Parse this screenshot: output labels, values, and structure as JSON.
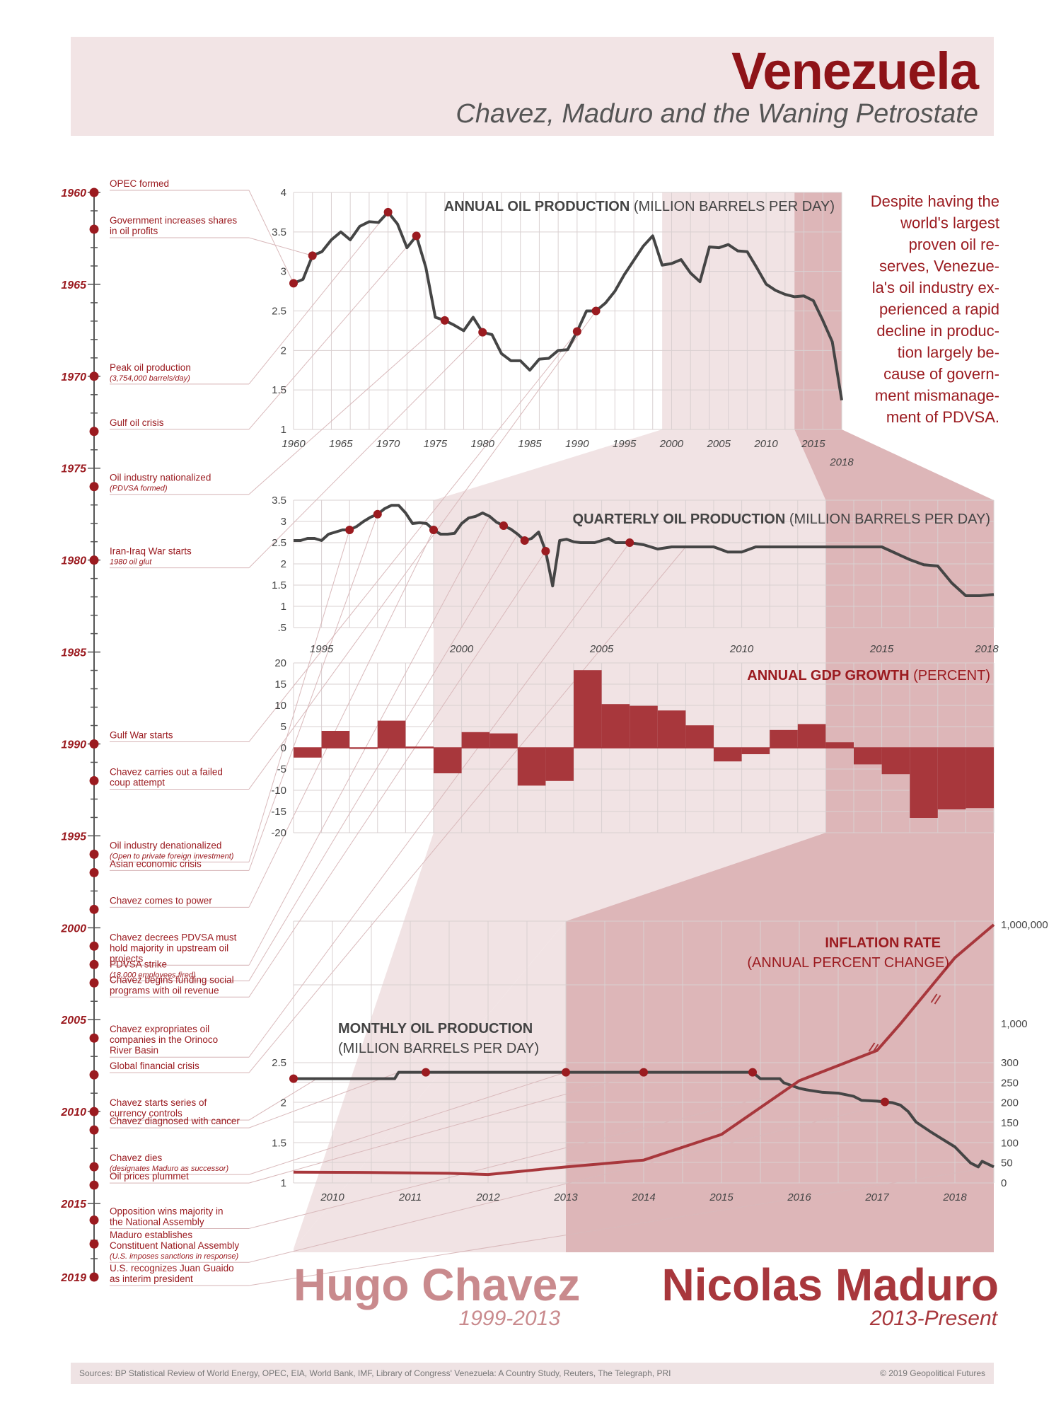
{
  "header": {
    "title": "Venezuela",
    "subtitle": "Chavez, Maduro and the Waning Petrostate"
  },
  "intro_text": "Despite having the world's largest proven oil reserves, Venezuela's oil industry experienced a rapid decline in production largely because of government mismanagement of PDVSA.",
  "intro_lines": [
    "Despite having the",
    "world's largest",
    "proven oil re-",
    "serves, Venezue-",
    "la's oil industry ex-",
    "perienced a rapid",
    "decline in produc-",
    "tion largely be-",
    "cause of govern-",
    "ment mismanage-",
    "ment of PDVSA."
  ],
  "colors": {
    "accent": "#9b1b20",
    "dark_line": "#454545",
    "chavez": "#c98a8d",
    "maduro": "#a8373c",
    "band_light": "#f1e3e4",
    "band_dark": "#ddb6b8",
    "header_bg": "#f2e4e5"
  },
  "timeline": {
    "year_labels": [
      "1960",
      "1965",
      "1970",
      "1975",
      "1980",
      "1985",
      "1990",
      "1995",
      "2000",
      "2005",
      "2010",
      "2015",
      "2019"
    ],
    "events": [
      {
        "year": 1960,
        "label": "OPEC formed",
        "note": ""
      },
      {
        "year": 1962,
        "label": "Government increases shares in oil profits",
        "note": ""
      },
      {
        "year": 1970,
        "label": "Peak oil production",
        "note": "(3,754,000 barrels/day)"
      },
      {
        "year": 1973,
        "label": "Gulf oil crisis",
        "note": ""
      },
      {
        "year": 1976,
        "label": "Oil industry nationalized",
        "note": "(PDVSA formed)"
      },
      {
        "year": 1980,
        "label": "Iran-Iraq War starts",
        "note": "1980 oil glut"
      },
      {
        "year": 1990,
        "label": "Gulf War starts",
        "note": ""
      },
      {
        "year": 1992,
        "label": "Chavez carries out a failed coup attempt",
        "note": ""
      },
      {
        "year": 1996,
        "label": "Oil industry denationalized",
        "note": "(Open to private foreign investment)"
      },
      {
        "year": 1997,
        "label": "Asian economic crisis",
        "note": ""
      },
      {
        "year": 1999,
        "label": "Chavez comes to power",
        "note": ""
      },
      {
        "year": 2001,
        "label": "Chavez decrees PDVSA must hold majority in upstream oil projects",
        "note": ""
      },
      {
        "year": 2002,
        "label": "PDVSA strike",
        "note": "(18,000 employees fired)"
      },
      {
        "year": 2003,
        "label": "Chavez begins funding social programs with oil revenue",
        "note": ""
      },
      {
        "year": 2006,
        "label": "Chavez expropriates oil companies in the Orinoco River Basin",
        "note": ""
      },
      {
        "year": 2008,
        "label": "Global financial crisis",
        "note": ""
      },
      {
        "year": 2010,
        "label": "Chavez starts series of currency controls",
        "note": ""
      },
      {
        "year": 2011,
        "label": "Chavez diagnosed with cancer",
        "note": ""
      },
      {
        "year": 2013,
        "label": "Chavez dies",
        "note": "(designates Maduro as successor)"
      },
      {
        "year": 2014,
        "label": "Oil prices plummet",
        "note": ""
      },
      {
        "year": 2015.9,
        "label": "Opposition wins majority in the National Assembly",
        "note": ""
      },
      {
        "year": 2017.2,
        "label": "Maduro establishes Constituent National Assembly",
        "note": "(U.S. imposes sanctions in response)"
      },
      {
        "year": 2019,
        "label": "U.S. recognizes Juan Guaido as interim president",
        "note": ""
      }
    ]
  },
  "chart_data": [
    {
      "type": "line",
      "title": "ANNUAL OIL PRODUCTION",
      "unit_label": "(MILLION BARRELS PER DAY)",
      "x_ticks": [
        "1960",
        "1965",
        "1970",
        "1975",
        "1980",
        "1985",
        "1990",
        "1995",
        "2000",
        "2005",
        "2010",
        "2015"
      ],
      "x_extra_tick": "2018",
      "y_ticks": [
        "1",
        "1.5",
        "2",
        "2.5",
        "3",
        "3.5",
        "4"
      ],
      "xlim": [
        1960,
        2018
      ],
      "ylim": [
        1,
        4
      ],
      "x": [
        1960,
        1961,
        1962,
        1963,
        1964,
        1965,
        1966,
        1967,
        1968,
        1969,
        1970,
        1971,
        1972,
        1973,
        1974,
        1975,
        1976,
        1977,
        1978,
        1979,
        1980,
        1981,
        1982,
        1983,
        1984,
        1985,
        1986,
        1987,
        1988,
        1989,
        1990,
        1991,
        1992,
        1993,
        1994,
        1995,
        1996,
        1997,
        1998,
        1999,
        2000,
        2001,
        2002,
        2003,
        2004,
        2005,
        2006,
        2007,
        2008,
        2009,
        2010,
        2011,
        2012,
        2013,
        2014,
        2015,
        2016,
        2017,
        2018
      ],
      "y": [
        2.85,
        2.9,
        3.2,
        3.25,
        3.4,
        3.5,
        3.4,
        3.57,
        3.63,
        3.62,
        3.75,
        3.6,
        3.3,
        3.45,
        3.05,
        2.42,
        2.38,
        2.32,
        2.25,
        2.42,
        2.23,
        2.2,
        1.96,
        1.87,
        1.87,
        1.75,
        1.89,
        1.9,
        2.0,
        2.01,
        2.24,
        2.5,
        2.5,
        2.6,
        2.75,
        2.96,
        3.14,
        3.32,
        3.45,
        3.08,
        3.1,
        3.15,
        2.98,
        2.87,
        3.31,
        3.3,
        3.34,
        3.26,
        3.25,
        3.05,
        2.84,
        2.76,
        2.71,
        2.68,
        2.69,
        2.63,
        2.38,
        2.11,
        1.37
      ],
      "highlight_years": [
        1960,
        1962,
        1970,
        1973,
        1976,
        1980,
        1990,
        1992
      ]
    },
    {
      "type": "line",
      "title": "QUARTERLY OIL PRODUCTION",
      "unit_label": "(MILLION BARRELS PER DAY)",
      "x_ticks": [
        "1995",
        "2000",
        "2005",
        "2010",
        "2015",
        "2018"
      ],
      "y_ticks": [
        ".5",
        "1",
        "1.5",
        "2",
        "2.5",
        "3",
        "3.5"
      ],
      "xlim": [
        1994,
        2019
      ],
      "ylim": [
        0.5,
        3.5
      ],
      "x": [
        1994.0,
        1994.25,
        1994.5,
        1994.75,
        1995.0,
        1995.25,
        1995.5,
        1995.75,
        1996.0,
        1996.25,
        1996.5,
        1996.75,
        1997.0,
        1997.25,
        1997.5,
        1997.75,
        1998.0,
        1998.25,
        1998.5,
        1998.75,
        1999.0,
        1999.25,
        1999.5,
        1999.75,
        2000.0,
        2000.25,
        2000.5,
        2000.75,
        2001.0,
        2001.25,
        2001.5,
        2001.75,
        2002.0,
        2002.25,
        2002.5,
        2002.75,
        2003.0,
        2003.25,
        2003.5,
        2003.75,
        2004.0,
        2004.25,
        2004.5,
        2004.75,
        2005.0,
        2005.25,
        2005.5,
        2005.75,
        2006.0,
        2006.5,
        2007.0,
        2007.5,
        2008.0,
        2008.5,
        2009.0,
        2009.5,
        2010.0,
        2010.5,
        2011.0,
        2011.5,
        2012.0,
        2012.5,
        2013.0,
        2013.5,
        2014.0,
        2014.5,
        2015.0,
        2015.5,
        2016.0,
        2016.5,
        2017.0,
        2017.5,
        2018.0,
        2018.5,
        2019.0
      ],
      "y": [
        2.55,
        2.55,
        2.6,
        2.6,
        2.55,
        2.7,
        2.75,
        2.8,
        2.8,
        2.88,
        3.0,
        3.1,
        3.17,
        3.3,
        3.38,
        3.38,
        3.2,
        2.95,
        2.97,
        2.95,
        2.8,
        2.7,
        2.7,
        2.72,
        2.95,
        3.08,
        3.12,
        3.2,
        3.12,
        2.98,
        2.9,
        2.82,
        2.7,
        2.55,
        2.6,
        2.75,
        2.3,
        1.48,
        2.55,
        2.58,
        2.52,
        2.5,
        2.5,
        2.5,
        2.55,
        2.6,
        2.5,
        2.5,
        2.5,
        2.45,
        2.35,
        2.4,
        2.4,
        2.4,
        2.4,
        2.28,
        2.28,
        2.4,
        2.4,
        2.4,
        2.4,
        2.4,
        2.4,
        2.4,
        2.4,
        2.4,
        2.4,
        2.25,
        2.1,
        1.98,
        1.95,
        1.55,
        1.25,
        1.25,
        1.28
      ],
      "highlight_x": [
        1996.0,
        1997.0,
        1999.0,
        2001.5,
        2002.25,
        2003.0,
        2006.0,
        2007.75
      ]
    },
    {
      "type": "bar",
      "title": "ANNUAL GDP GROWTH",
      "unit_label": "(PERCENT)",
      "y_ticks": [
        "-20",
        "-15",
        "-10",
        "-5",
        "0",
        "5",
        "10",
        "15",
        "20"
      ],
      "ylim": [
        -20,
        20
      ],
      "categories": [
        "1994",
        "1995",
        "1996",
        "1997",
        "1998",
        "1999",
        "2000",
        "2001",
        "2002",
        "2003",
        "2004",
        "2005",
        "2006",
        "2007",
        "2008",
        "2009",
        "2010",
        "2011",
        "2012",
        "2013",
        "2014",
        "2015",
        "2016",
        "2017",
        "2018"
      ],
      "values": [
        -2.3,
        4.0,
        -0.2,
        6.4,
        0.3,
        -6.0,
        3.7,
        3.4,
        -8.9,
        -7.8,
        18.3,
        10.3,
        9.9,
        8.8,
        5.3,
        -3.2,
        -1.5,
        4.2,
        5.6,
        1.3,
        -3.9,
        -6.2,
        -16.5,
        -14.5,
        -14.2
      ]
    },
    {
      "type": "line",
      "title": "MONTHLY OIL PRODUCTION",
      "unit_label": "(MILLION BARRELS PER DAY)",
      "x_ticks": [
        "2010",
        "2011",
        "2012",
        "2013",
        "2014",
        "2015",
        "2016",
        "2017",
        "2018"
      ],
      "y_ticks": [
        "1",
        "1.5",
        "2",
        "2.5"
      ],
      "xlim": [
        2009.5,
        2018.5
      ],
      "ylim": [
        1,
        2.5
      ],
      "x": [
        2009.5,
        2009.8,
        2010.2,
        2010.5,
        2010.8,
        2010.85,
        2011.2,
        2011.5,
        2012.0,
        2012.5,
        2013.0,
        2013.5,
        2014.0,
        2014.5,
        2015.0,
        2015.4,
        2015.5,
        2015.75,
        2015.8,
        2016.0,
        2016.1,
        2016.3,
        2016.5,
        2016.7,
        2016.8,
        2017.0,
        2017.1,
        2017.2,
        2017.3,
        2017.4,
        2017.5,
        2017.7,
        2017.8,
        2018.0,
        2018.1,
        2018.2,
        2018.3,
        2018.35,
        2018.5
      ],
      "y": [
        2.3,
        2.3,
        2.3,
        2.3,
        2.3,
        2.38,
        2.38,
        2.38,
        2.38,
        2.38,
        2.38,
        2.38,
        2.38,
        2.38,
        2.38,
        2.38,
        2.3,
        2.3,
        2.25,
        2.18,
        2.16,
        2.13,
        2.12,
        2.08,
        2.03,
        2.02,
        2.01,
        2.0,
        1.97,
        1.89,
        1.76,
        1.63,
        1.57,
        1.45,
        1.35,
        1.25,
        1.2,
        1.27,
        1.2
      ],
      "highlight_x": [
        2009.5,
        2011.2,
        2013.0,
        2014.0,
        2015.4,
        2017.1
      ]
    },
    {
      "type": "line",
      "title": "INFLATION RATE",
      "unit_label": "(ANNUAL PERCENT CHANGE)",
      "y_ticks": [
        "0",
        "50",
        "100",
        "150",
        "200",
        "250",
        "300",
        "1,000",
        "1,000,000"
      ],
      "xlim": [
        2009.5,
        2018.5
      ],
      "x": [
        2009.5,
        2010.5,
        2011.5,
        2012.0,
        2013.0,
        2014.0,
        2015.0,
        2016.0,
        2017.0,
        2017.3,
        2018.0,
        2018.5
      ],
      "y": [
        27,
        26,
        24,
        21,
        40,
        57,
        121,
        255,
        438,
        1000,
        100000,
        1000000
      ]
    }
  ],
  "eras": [
    {
      "name": "Hugo Chavez",
      "years": "1999-2013"
    },
    {
      "name": "Nicolas Maduro",
      "years": "2013-Present"
    }
  ],
  "footer": {
    "sources": "Sources: BP Statistical Review of World Energy, OPEC, EIA, World Bank, IMF, Library of Congress' Venezuela: A Country Study, Reuters, The Telegraph, PRI",
    "copyright": "© 2019 Geopolitical Futures"
  }
}
